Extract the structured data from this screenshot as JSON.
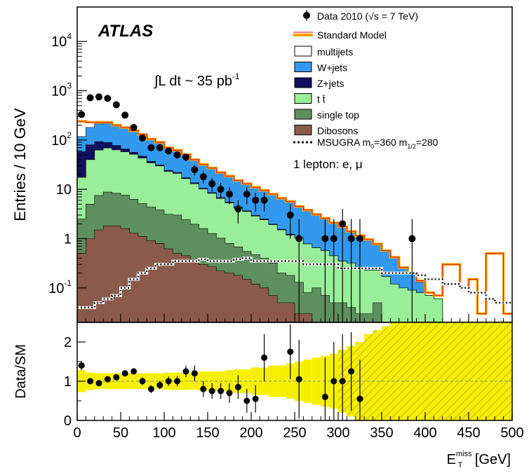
{
  "chart_data": [
    {
      "type": "histogram",
      "panel": "main",
      "experiment_label": "ATLAS",
      "luminosity_label": {
        "integral": "∫L dt ~  35 pb",
        "exponent": "-1"
      },
      "selection_label": "1 lepton: e, μ",
      "ylabel": "Entries / 10 GeV",
      "yscale": "log",
      "ylim": [
        0.02,
        50000
      ],
      "yticks": [
        {
          "value": 0.1,
          "base": "10",
          "exp": "-1"
        },
        {
          "value": 1,
          "base": "1",
          "exp": ""
        },
        {
          "value": 10,
          "base": "10",
          "exp": ""
        },
        {
          "value": 100,
          "base": "10",
          "exp": "2"
        },
        {
          "value": 1000,
          "base": "10",
          "exp": "3"
        },
        {
          "value": 10000,
          "base": "10",
          "exp": "4"
        }
      ],
      "xlim": [
        0,
        500
      ],
      "bin_width": 10,
      "legend": {
        "placement": "top-right",
        "data_label": {
          "main": "Data 2010 (",
          "sqrt": "√s = 7 TeV)"
        },
        "sm_label": "Standard Model",
        "signal_label": {
          "main": "MSUGRA m",
          "sub0": "0",
          "mid": "=360 m",
          "sub12": "1/2",
          "end": "=280"
        }
      },
      "bin_edges_x": [
        0,
        10,
        20,
        30,
        40,
        50,
        60,
        70,
        80,
        90,
        100,
        110,
        120,
        130,
        140,
        150,
        160,
        170,
        180,
        190,
        200,
        210,
        220,
        230,
        240,
        250,
        260,
        270,
        280,
        290,
        300,
        310,
        320,
        330,
        340,
        350,
        360,
        370,
        380,
        390,
        400,
        410,
        420,
        430,
        440,
        450,
        460,
        470,
        480,
        490,
        500
      ],
      "stack_series": [
        {
          "name": "Dibosons",
          "color": "#8b5a4a",
          "values": [
            0.5,
            1.0,
            1.5,
            1.8,
            1.8,
            1.6,
            1.3,
            1.1,
            0.9,
            0.8,
            0.62,
            0.5,
            0.45,
            0.36,
            0.3,
            0.27,
            0.22,
            0.2,
            0.18,
            0.15,
            0.12,
            0.1,
            0.07,
            0.05,
            0.05,
            0.03,
            0.03,
            0,
            0,
            0,
            0,
            0,
            0,
            0,
            0,
            0,
            0,
            0,
            0,
            0,
            0,
            0,
            0,
            0,
            0,
            0,
            0,
            0,
            0,
            0
          ]
        },
        {
          "name": "single top",
          "color": "#5e8f5e",
          "values": [
            2.0,
            4.0,
            6.0,
            7.0,
            6.5,
            6.0,
            5.0,
            4.0,
            3.5,
            3.0,
            2.5,
            2.5,
            2.0,
            1.6,
            1.3,
            1.0,
            0.8,
            0.6,
            0.5,
            0.4,
            0.35,
            0.3,
            0.25,
            0.15,
            0.13,
            0.1,
            0.05,
            0.1,
            0.07,
            0.05,
            0.05,
            0.04,
            0.03,
            0.03,
            0.05,
            0.02,
            0,
            0,
            0,
            0,
            0,
            0,
            0,
            0,
            0,
            0,
            0,
            0,
            0,
            0
          ]
        },
        {
          "name": "t t̄",
          "color": "#99ee99",
          "values": [
            15,
            35,
            55,
            60,
            55,
            50,
            45,
            38,
            30,
            26,
            20,
            18,
            14,
            11,
            8.5,
            7,
            5.5,
            4.5,
            3.5,
            3,
            2.4,
            2,
            1.6,
            1.3,
            1,
            0.9,
            0.7,
            0.55,
            0.5,
            0.4,
            0.3,
            0.28,
            0.22,
            0.2,
            0.18,
            0.15,
            0.12,
            0.1,
            0.09,
            0.08,
            0.07,
            0.06,
            0,
            0,
            0,
            0,
            0,
            0,
            0,
            0
          ]
        },
        {
          "name": "Z+jets",
          "color": "#101060",
          "values": [
            40,
            40,
            30,
            20,
            14,
            8,
            5,
            4,
            2.5,
            1.5,
            1,
            1,
            0.8,
            0.6,
            0.4,
            0.3,
            0.25,
            0.2,
            0.15,
            0.1,
            0.1,
            0.1,
            0.05,
            0.05,
            0.05,
            0,
            0,
            0,
            0,
            0,
            0,
            0,
            0,
            0,
            0,
            0,
            0,
            0,
            0,
            0,
            0,
            0,
            0,
            0,
            0,
            0,
            0,
            0,
            0,
            0
          ]
        },
        {
          "name": "W+jets",
          "color": "#3399ee",
          "values": [
            60,
            100,
            120,
            130,
            120,
            110,
            95,
            80,
            65,
            55,
            45,
            40,
            33,
            27,
            22,
            19,
            16,
            13,
            11,
            9.5,
            8,
            7,
            6,
            5,
            4.3,
            3.5,
            3,
            2.5,
            2,
            1.6,
            1.4,
            1.1,
            0.9,
            0.7,
            0.55,
            0.4,
            0.3,
            0.15,
            0.1,
            0.05,
            0,
            0,
            0,
            0,
            0,
            0,
            0,
            0,
            0,
            0
          ]
        },
        {
          "name": "multijets",
          "color": "#ffffff",
          "values": [
            120,
            50,
            20,
            10,
            5,
            3,
            2,
            1,
            0.5,
            0.5,
            0.3,
            0.2,
            0.1,
            0,
            0,
            0,
            0,
            0,
            0,
            0,
            0,
            0,
            0,
            0,
            0,
            0,
            0,
            0,
            0,
            0,
            0,
            0,
            0,
            0,
            0,
            0,
            0,
            0,
            0,
            0,
            0,
            0,
            0,
            0,
            0,
            0,
            0,
            0,
            0,
            0
          ]
        }
      ],
      "sm_total": {
        "name": "Standard Model",
        "color": "#ffa000",
        "values": [
          240,
          230,
          230,
          230,
          200,
          180,
          155,
          130,
          105,
          90,
          70,
          62,
          51,
          40,
          32,
          27,
          22,
          18.6,
          15.2,
          13,
          11,
          9.5,
          8,
          6.6,
          5.7,
          4.5,
          3.8,
          3.1,
          2.6,
          2.1,
          1.75,
          1.4,
          1.15,
          0.96,
          0.78,
          0.57,
          0.42,
          0.26,
          0.2,
          0.14,
          0.08,
          0.07,
          0.3,
          0.3,
          0.1,
          0.15,
          0.03,
          0.5,
          0.5,
          0.03
        ]
      },
      "signal": {
        "name": "MSUGRA m0=360 m1/2=280",
        "style": "dotted",
        "color": "#111111",
        "values": [
          0.04,
          0.04,
          0.05,
          0.06,
          0.07,
          0.1,
          0.15,
          0.2,
          0.25,
          0.3,
          0.3,
          0.35,
          0.35,
          0.35,
          0.38,
          0.35,
          0.35,
          0.35,
          0.38,
          0.4,
          0.35,
          0.35,
          0.35,
          0.35,
          0.35,
          0.35,
          0.3,
          0.3,
          0.3,
          0.3,
          0.25,
          0.25,
          0.25,
          0.25,
          0.25,
          0.2,
          0.2,
          0.2,
          0.2,
          0.18,
          0.15,
          0.15,
          0.12,
          0.12,
          0.1,
          0.08,
          0.08,
          0.06,
          0.05,
          0.05
        ]
      },
      "data_points": {
        "name": "Data 2010",
        "x": [
          5,
          15,
          25,
          35,
          45,
          55,
          65,
          75,
          85,
          95,
          105,
          115,
          125,
          135,
          145,
          155,
          165,
          175,
          185,
          195,
          205,
          215,
          245,
          255,
          285,
          295,
          305,
          315,
          325,
          385
        ],
        "y": [
          330,
          720,
          750,
          700,
          520,
          320,
          180,
          110,
          70,
          70,
          60,
          50,
          45,
          25,
          18,
          13,
          10,
          8,
          4,
          8,
          6,
          6,
          3,
          1,
          1,
          1,
          2,
          1,
          1,
          1
        ],
        "yerr_up": [
          25,
          30,
          30,
          30,
          25,
          20,
          15,
          12,
          10,
          10,
          9,
          8,
          8,
          6,
          5,
          4,
          3.5,
          3,
          2,
          3,
          2.5,
          2.5,
          2,
          1.5,
          1.5,
          1.5,
          2,
          1.5,
          1.5,
          1.5
        ]
      }
    },
    {
      "type": "scatter",
      "panel": "ratio",
      "ylabel": "Data/SM",
      "xlabel": {
        "main": "E",
        "sup": "miss",
        "sub": "T",
        "unit": " [GeV]"
      },
      "xlim": [
        0,
        500
      ],
      "ylim": [
        0,
        2.5
      ],
      "xticks": [
        0,
        50,
        100,
        150,
        200,
        250,
        300,
        350,
        400,
        450,
        500
      ],
      "yticks": [
        0,
        1,
        2
      ],
      "reference_line": 1,
      "band": {
        "name": "SM uncertainty",
        "color": "#f5f000",
        "half_width": [
          0.28,
          0.22,
          0.2,
          0.2,
          0.2,
          0.2,
          0.2,
          0.2,
          0.2,
          0.2,
          0.22,
          0.22,
          0.22,
          0.22,
          0.25,
          0.25,
          0.25,
          0.28,
          0.3,
          0.3,
          0.35,
          0.35,
          0.4,
          0.4,
          0.45,
          0.5,
          0.55,
          0.6,
          0.65,
          0.7,
          0.8,
          0.9,
          1.0,
          1.2,
          1.3,
          1.4,
          1.5,
          1.5,
          1.5,
          1.5,
          1.5,
          1.5,
          1.5,
          1.5,
          1.5,
          1.5,
          1.5,
          1.5,
          1.5,
          1.5
        ],
        "hatched_from_x": 300
      },
      "points": {
        "x": [
          5,
          15,
          25,
          35,
          45,
          55,
          65,
          75,
          85,
          95,
          105,
          115,
          125,
          135,
          145,
          155,
          165,
          175,
          185,
          195,
          205,
          215,
          245,
          255,
          285,
          295,
          305,
          315,
          325
        ],
        "y": [
          1.4,
          1.0,
          0.95,
          1.05,
          1.1,
          1.2,
          1.25,
          1.0,
          0.8,
          0.9,
          1.0,
          1.0,
          1.25,
          1.2,
          0.8,
          0.75,
          0.75,
          0.7,
          0.85,
          0.5,
          0.55,
          1.6,
          1.75,
          1.05,
          0.6,
          1.0,
          1.0,
          1.25,
          0.55
        ],
        "yerr": [
          0.12,
          0.06,
          0.06,
          0.06,
          0.06,
          0.07,
          0.08,
          0.1,
          0.1,
          0.11,
          0.12,
          0.13,
          0.15,
          0.2,
          0.2,
          0.2,
          0.2,
          0.25,
          0.3,
          0.3,
          0.35,
          0.6,
          0.7,
          1.0,
          1.0,
          1.0,
          1.2,
          1.0,
          1.0
        ]
      }
    }
  ]
}
